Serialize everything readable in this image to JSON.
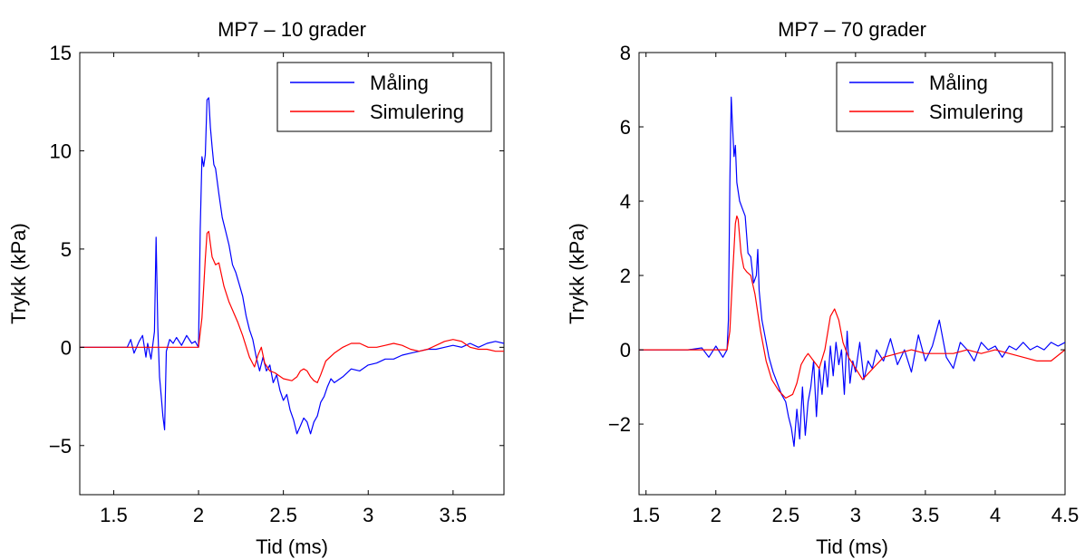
{
  "chart_data": [
    {
      "type": "line",
      "title": "MP7 – 10 grader",
      "xlabel": "Tid (ms)",
      "ylabel": "Trykk (kPa)",
      "xlim": [
        1.3,
        3.8
      ],
      "ylim": [
        -7.5,
        15
      ],
      "xticks": [
        1.5,
        2,
        2.5,
        3,
        3.5
      ],
      "xtick_labels": [
        "1.5",
        "2",
        "2.5",
        "3",
        "3.5"
      ],
      "yticks": [
        -5,
        0,
        5,
        10,
        15
      ],
      "ytick_labels": [
        "−5",
        "0",
        "5",
        "10",
        "15"
      ],
      "grid": false,
      "legend": "top-right",
      "series": [
        {
          "name": "Måling",
          "color": "#0000ff",
          "x": [
            1.3,
            1.58,
            1.6,
            1.62,
            1.65,
            1.67,
            1.69,
            1.7,
            1.72,
            1.74,
            1.75,
            1.76,
            1.77,
            1.78,
            1.79,
            1.8,
            1.81,
            1.83,
            1.85,
            1.87,
            1.9,
            1.93,
            1.96,
            1.98,
            2.0,
            2.01,
            2.02,
            2.03,
            2.04,
            2.05,
            2.06,
            2.07,
            2.08,
            2.09,
            2.1,
            2.12,
            2.14,
            2.16,
            2.18,
            2.2,
            2.22,
            2.24,
            2.26,
            2.28,
            2.3,
            2.32,
            2.34,
            2.36,
            2.38,
            2.4,
            2.42,
            2.44,
            2.46,
            2.48,
            2.5,
            2.52,
            2.54,
            2.56,
            2.58,
            2.6,
            2.62,
            2.64,
            2.66,
            2.68,
            2.7,
            2.72,
            2.74,
            2.76,
            2.78,
            2.8,
            2.85,
            2.9,
            2.95,
            3.0,
            3.05,
            3.1,
            3.15,
            3.2,
            3.25,
            3.3,
            3.35,
            3.4,
            3.45,
            3.5,
            3.55,
            3.6,
            3.65,
            3.7,
            3.75,
            3.8
          ],
          "y": [
            0.0,
            0.0,
            0.4,
            -0.3,
            0.3,
            0.6,
            -0.5,
            0.2,
            -0.6,
            0.8,
            5.6,
            1.0,
            -1.5,
            -2.5,
            -3.5,
            -4.2,
            -0.2,
            0.4,
            0.2,
            0.5,
            0.1,
            0.6,
            0.2,
            0.3,
            0.0,
            6.0,
            9.7,
            9.2,
            9.8,
            12.6,
            12.7,
            11.2,
            10.2,
            9.3,
            9.1,
            7.8,
            6.6,
            5.9,
            5.2,
            4.2,
            3.8,
            3.2,
            2.6,
            1.6,
            0.9,
            0.4,
            -0.5,
            -1.2,
            -0.5,
            -1.2,
            -0.9,
            -1.8,
            -1.4,
            -2.2,
            -2.7,
            -2.4,
            -3.2,
            -3.7,
            -4.4,
            -4.0,
            -3.6,
            -3.8,
            -4.4,
            -3.8,
            -3.5,
            -2.8,
            -2.5,
            -2.0,
            -1.6,
            -1.8,
            -1.5,
            -1.1,
            -1.2,
            -0.9,
            -0.8,
            -0.6,
            -0.6,
            -0.4,
            -0.3,
            -0.2,
            -0.1,
            -0.1,
            0.0,
            0.1,
            0.0,
            0.2,
            0.0,
            0.2,
            0.3,
            0.2
          ]
        },
        {
          "name": "Simulering",
          "color": "#ff0000",
          "x": [
            1.3,
            1.5,
            1.7,
            1.9,
            2.0,
            2.02,
            2.04,
            2.05,
            2.06,
            2.08,
            2.1,
            2.12,
            2.15,
            2.18,
            2.2,
            2.23,
            2.26,
            2.3,
            2.33,
            2.35,
            2.37,
            2.39,
            2.42,
            2.45,
            2.5,
            2.55,
            2.58,
            2.6,
            2.62,
            2.64,
            2.66,
            2.68,
            2.7,
            2.72,
            2.75,
            2.8,
            2.85,
            2.9,
            2.95,
            3.0,
            3.05,
            3.1,
            3.15,
            3.2,
            3.25,
            3.3,
            3.35,
            3.4,
            3.45,
            3.5,
            3.55,
            3.6,
            3.65,
            3.7,
            3.75,
            3.8
          ],
          "y": [
            0.0,
            0.0,
            0.0,
            0.0,
            0.0,
            1.5,
            4.5,
            5.8,
            5.9,
            4.6,
            4.2,
            4.3,
            3.1,
            2.3,
            1.9,
            1.3,
            0.6,
            -0.5,
            -1.0,
            -0.4,
            0.0,
            -0.8,
            -1.2,
            -1.3,
            -1.6,
            -1.7,
            -1.5,
            -1.2,
            -1.1,
            -1.2,
            -1.5,
            -1.7,
            -1.8,
            -1.4,
            -0.7,
            -0.3,
            0.0,
            0.2,
            0.2,
            0.0,
            0.0,
            0.1,
            0.2,
            0.1,
            -0.1,
            -0.2,
            -0.1,
            0.1,
            0.3,
            0.4,
            0.3,
            0.0,
            -0.1,
            -0.1,
            -0.2,
            -0.2
          ]
        }
      ]
    },
    {
      "type": "line",
      "title": "MP7 – 70 grader",
      "xlabel": "Tid (ms)",
      "ylabel": "Trykk (kPa)",
      "xlim": [
        1.45,
        4.5
      ],
      "ylim": [
        -3.9,
        8
      ],
      "xticks": [
        1.5,
        2,
        2.5,
        3,
        3.5,
        4,
        4.5
      ],
      "xtick_labels": [
        "1.5",
        "2",
        "2.5",
        "3",
        "3.5",
        "4",
        "4.5"
      ],
      "yticks": [
        -2,
        0,
        2,
        4,
        6,
        8
      ],
      "ytick_labels": [
        "−2",
        "0",
        "2",
        "4",
        "6",
        "8"
      ],
      "grid": false,
      "legend": "top-right",
      "series": [
        {
          "name": "Måling",
          "color": "#0000ff",
          "x": [
            1.45,
            1.8,
            1.9,
            1.95,
            2.0,
            2.05,
            2.08,
            2.09,
            2.1,
            2.11,
            2.12,
            2.13,
            2.14,
            2.15,
            2.17,
            2.19,
            2.21,
            2.23,
            2.25,
            2.27,
            2.29,
            2.3,
            2.31,
            2.33,
            2.35,
            2.38,
            2.41,
            2.44,
            2.47,
            2.5,
            2.52,
            2.54,
            2.56,
            2.58,
            2.6,
            2.62,
            2.64,
            2.66,
            2.68,
            2.7,
            2.72,
            2.74,
            2.76,
            2.78,
            2.8,
            2.82,
            2.84,
            2.86,
            2.88,
            2.9,
            2.92,
            2.94,
            2.96,
            2.98,
            3.0,
            3.03,
            3.06,
            3.09,
            3.12,
            3.15,
            3.2,
            3.25,
            3.3,
            3.35,
            3.4,
            3.45,
            3.5,
            3.55,
            3.6,
            3.65,
            3.7,
            3.75,
            3.8,
            3.85,
            3.9,
            3.95,
            4.0,
            4.05,
            4.1,
            4.15,
            4.2,
            4.25,
            4.3,
            4.35,
            4.4,
            4.45,
            4.5
          ],
          "y": [
            0.0,
            0.0,
            0.05,
            -0.2,
            0.1,
            -0.2,
            0.0,
            0.8,
            4.5,
            6.8,
            6.0,
            5.2,
            5.5,
            4.5,
            4.0,
            3.8,
            3.6,
            2.6,
            2.5,
            1.8,
            2.0,
            2.7,
            1.6,
            0.8,
            0.4,
            -0.2,
            -0.6,
            -0.9,
            -1.2,
            -1.4,
            -1.8,
            -2.1,
            -2.6,
            -1.6,
            -2.4,
            -1.0,
            -2.3,
            -1.4,
            -1.0,
            -0.3,
            -1.8,
            -0.5,
            -1.2,
            -0.3,
            -1.0,
            0.1,
            -0.7,
            0.2,
            -0.4,
            0.0,
            -1.2,
            0.5,
            -0.9,
            -0.3,
            -0.6,
            0.2,
            -0.8,
            -0.3,
            -0.5,
            0.0,
            -0.3,
            0.3,
            -0.4,
            0.0,
            -0.6,
            0.4,
            -0.3,
            0.1,
            0.8,
            -0.2,
            -0.5,
            0.2,
            0.0,
            -0.3,
            0.2,
            0.0,
            0.1,
            -0.2,
            0.1,
            0.0,
            0.2,
            0.0,
            0.1,
            0.0,
            0.2,
            0.1,
            0.2
          ]
        },
        {
          "name": "Simulering",
          "color": "#ff0000",
          "x": [
            1.45,
            1.8,
            2.0,
            2.08,
            2.1,
            2.12,
            2.14,
            2.15,
            2.16,
            2.18,
            2.2,
            2.22,
            2.25,
            2.28,
            2.32,
            2.36,
            2.4,
            2.45,
            2.5,
            2.55,
            2.58,
            2.61,
            2.64,
            2.66,
            2.7,
            2.74,
            2.78,
            2.82,
            2.85,
            2.88,
            2.91,
            2.95,
            3.0,
            3.05,
            3.1,
            3.15,
            3.2,
            3.3,
            3.4,
            3.5,
            3.6,
            3.7,
            3.8,
            3.9,
            4.0,
            4.1,
            4.2,
            4.3,
            4.4,
            4.5
          ],
          "y": [
            0.0,
            0.0,
            0.0,
            0.0,
            0.5,
            2.0,
            3.4,
            3.6,
            3.5,
            2.6,
            2.2,
            2.1,
            2.0,
            1.5,
            0.5,
            -0.3,
            -0.8,
            -1.1,
            -1.3,
            -1.2,
            -0.9,
            -0.4,
            -0.2,
            -0.1,
            -0.3,
            -0.5,
            0.0,
            0.9,
            1.1,
            0.8,
            0.2,
            -0.2,
            -0.5,
            -0.8,
            -0.6,
            -0.4,
            -0.2,
            -0.1,
            0.0,
            -0.1,
            -0.1,
            -0.1,
            0.0,
            -0.1,
            0.0,
            -0.1,
            -0.2,
            -0.3,
            -0.3,
            0.0
          ]
        }
      ]
    }
  ]
}
